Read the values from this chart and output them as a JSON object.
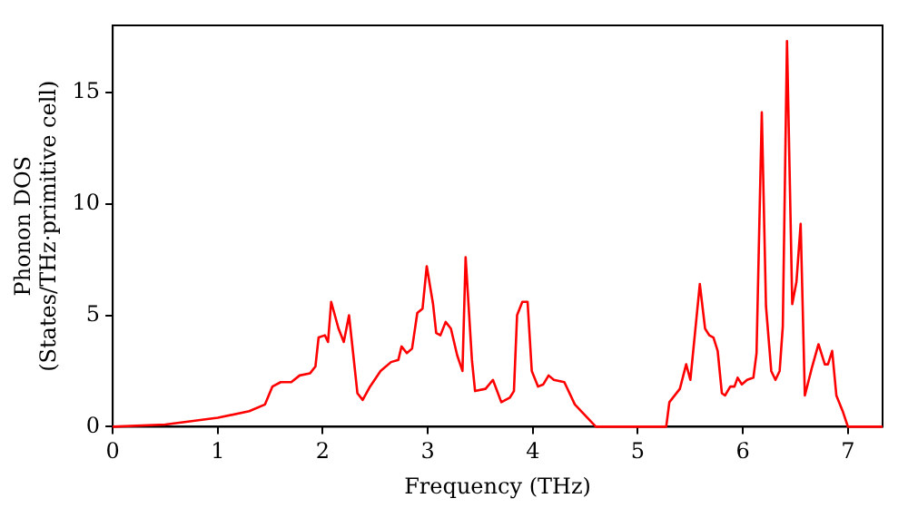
{
  "chart_data": {
    "type": "line",
    "xlabel": "Frequency (THz)",
    "ylabel": "Phonon DOS\n(States/THz·primitive cell)",
    "xlim": [
      0,
      7.33
    ],
    "ylim": [
      0,
      18
    ],
    "xticks": [
      0,
      1,
      2,
      3,
      4,
      5,
      6,
      7
    ],
    "yticks": [
      0,
      5,
      10,
      15
    ],
    "grid": false,
    "legend": false,
    "marker": "none",
    "line_style": "solid",
    "series": [
      {
        "color": "#ff0000",
        "x": [
          0,
          0.5,
          1,
          1.3,
          1.45,
          1.52,
          1.6,
          1.7,
          1.78,
          1.88,
          1.93,
          1.96,
          2.02,
          2.05,
          2.08,
          2.15,
          2.2,
          2.25,
          2.33,
          2.38,
          2.45,
          2.55,
          2.65,
          2.72,
          2.75,
          2.8,
          2.85,
          2.9,
          2.95,
          2.99,
          3.05,
          3.08,
          3.12,
          3.17,
          3.22,
          3.28,
          3.33,
          3.36,
          3.42,
          3.45,
          3.55,
          3.62,
          3.7,
          3.78,
          3.82,
          3.85,
          3.9,
          3.95,
          3.99,
          4.05,
          4.1,
          4.15,
          4.2,
          4.3,
          4.4,
          4.5,
          4.6,
          5.27,
          5.3,
          5.4,
          5.46,
          5.5,
          5.59,
          5.64,
          5.68,
          5.72,
          5.76,
          5.8,
          5.83,
          5.88,
          5.92,
          5.95,
          5.99,
          6.04,
          6.1,
          6.13,
          6.18,
          6.22,
          6.27,
          6.31,
          6.35,
          6.38,
          6.42,
          6.47,
          6.51,
          6.55,
          6.59,
          6.66,
          6.72,
          6.78,
          6.81,
          6.85,
          6.89,
          6.95,
          7.0,
          7.33
        ],
        "values": [
          0,
          0.1,
          0.4,
          0.7,
          1.0,
          1.8,
          2.0,
          2.0,
          2.3,
          2.4,
          2.7,
          4.0,
          4.1,
          3.8,
          5.6,
          4.4,
          3.8,
          5.0,
          1.5,
          1.2,
          1.8,
          2.5,
          2.9,
          3.0,
          3.6,
          3.3,
          3.5,
          5.1,
          5.3,
          7.2,
          5.5,
          4.2,
          4.1,
          4.7,
          4.4,
          3.2,
          2.5,
          7.6,
          3.0,
          1.6,
          1.7,
          2.1,
          1.1,
          1.3,
          1.6,
          5.0,
          5.6,
          5.6,
          2.5,
          1.8,
          1.9,
          2.3,
          2.1,
          2.0,
          1.0,
          0.5,
          0,
          0,
          1.1,
          1.7,
          2.8,
          2.1,
          6.4,
          4.4,
          4.1,
          4.0,
          3.4,
          1.5,
          1.4,
          1.8,
          1.8,
          2.2,
          1.9,
          2.1,
          2.2,
          3.3,
          14.1,
          5.4,
          2.5,
          2.1,
          2.5,
          4.5,
          17.3,
          5.5,
          6.5,
          9.1,
          1.4,
          2.7,
          3.7,
          2.8,
          2.8,
          3.4,
          1.4,
          0.7,
          0,
          0
        ]
      }
    ]
  }
}
